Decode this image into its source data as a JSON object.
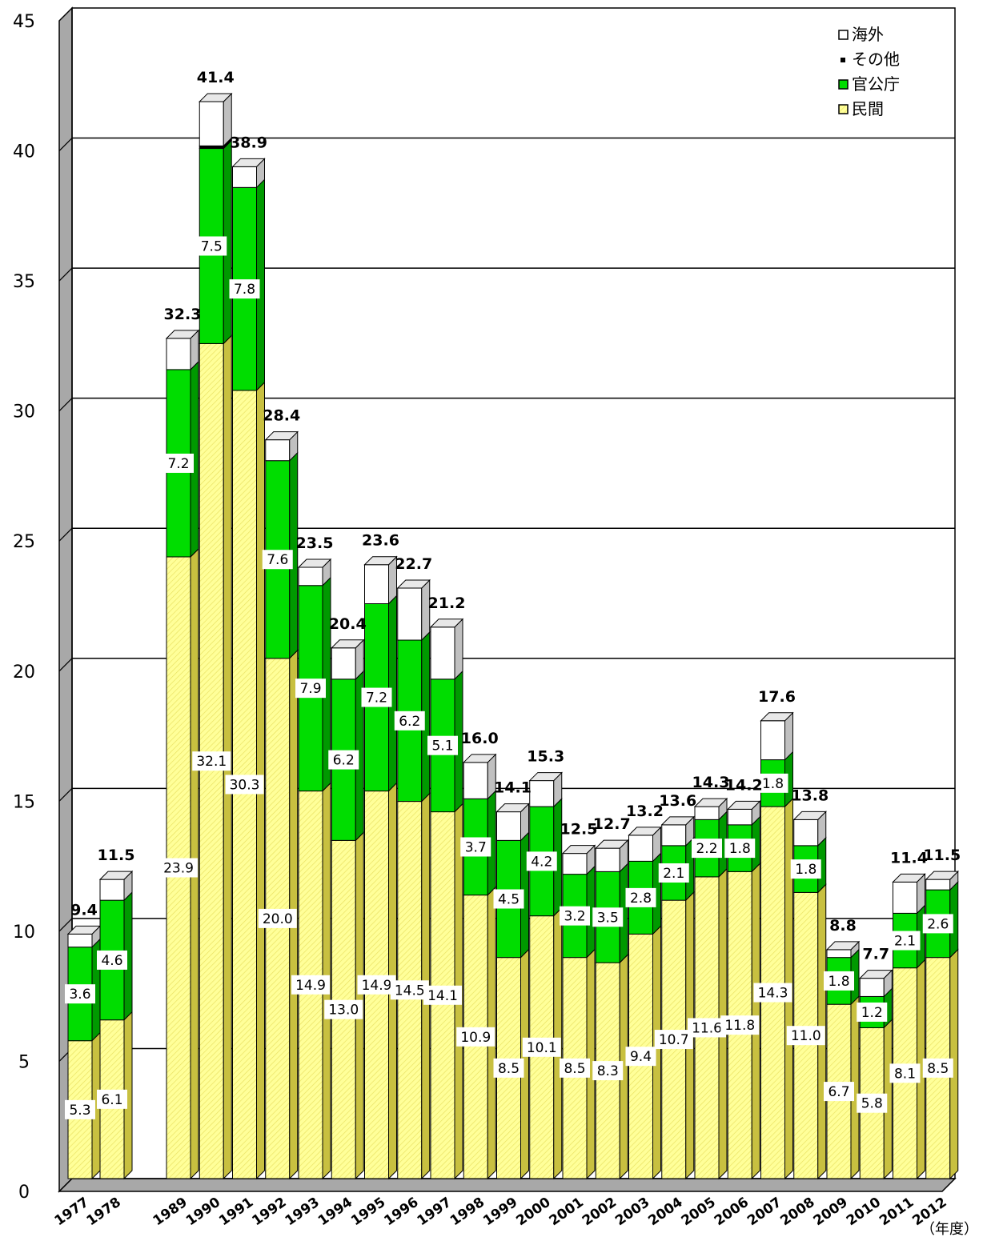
{
  "chart_data": {
    "type": "bar",
    "stacked": true,
    "categories": [
      "1977",
      "1978",
      "1989",
      "1990",
      "1991",
      "1992",
      "1993",
      "1994",
      "1995",
      "1996",
      "1997",
      "1998",
      "1999",
      "2000",
      "2001",
      "2002",
      "2003",
      "2004",
      "2005",
      "2006",
      "2007",
      "2008",
      "2009",
      "2010",
      "2011",
      "2012"
    ],
    "series": [
      {
        "name": "民間",
        "color": "#ffff99",
        "values": [
          5.3,
          6.1,
          23.9,
          32.1,
          30.3,
          20.0,
          14.9,
          13.0,
          14.9,
          14.5,
          14.1,
          10.9,
          8.5,
          10.1,
          8.5,
          8.3,
          9.4,
          10.7,
          11.6,
          11.8,
          14.3,
          11.0,
          6.7,
          5.8,
          8.1,
          8.5
        ],
        "labels": [
          "5.3",
          "6.1",
          "23.9",
          "32.1",
          "30.3",
          "20.0",
          "14.9",
          "13.0",
          "14.9",
          "14.5",
          "14.1",
          "10.9",
          "8.5",
          "10.1",
          "8.5",
          "8.3",
          "9.4",
          "10.7",
          "11.6",
          "11.8",
          "14.3",
          "11.0",
          "6.7",
          "5.8",
          "8.1",
          "8.5"
        ]
      },
      {
        "name": "官公庁",
        "color": "#00dd00",
        "values": [
          3.6,
          4.6,
          7.2,
          7.5,
          7.8,
          7.6,
          7.9,
          6.2,
          7.2,
          6.2,
          5.1,
          3.7,
          4.5,
          4.2,
          3.2,
          3.5,
          2.8,
          2.1,
          2.2,
          1.8,
          1.8,
          1.8,
          1.8,
          1.2,
          2.1,
          2.6
        ],
        "labels": [
          "3.6",
          "4.6",
          "7.2",
          "7.5",
          "7.8",
          "7.6",
          "7.9",
          "6.2",
          "7.2",
          "6.2",
          "5.1",
          "3.7",
          "4.5",
          "4.2",
          "3.2",
          "3.5",
          "2.8",
          "2.1",
          "2.2",
          "1.8",
          "1.8",
          "1.8",
          "1.8",
          "1.2",
          "2.1",
          "2.6"
        ]
      },
      {
        "name": "その他",
        "color": "#000000",
        "values": [
          0,
          0,
          0,
          0.1,
          0,
          0,
          0,
          0,
          0,
          0,
          0,
          0,
          0,
          0,
          0,
          0,
          0,
          0,
          0,
          0,
          0,
          0,
          0,
          0,
          0,
          0
        ]
      },
      {
        "name": "海外",
        "color": "#ffffff",
        "values": [
          0.5,
          0.8,
          1.2,
          1.7,
          0.8,
          0.8,
          0.7,
          1.2,
          1.5,
          2.0,
          2.0,
          1.4,
          1.1,
          1.0,
          0.8,
          0.9,
          1.0,
          0.8,
          0.5,
          0.6,
          1.5,
          1.0,
          0.3,
          0.7,
          1.2,
          0.4
        ]
      }
    ],
    "totals": [
      "9.4",
      "11.5",
      "32.3",
      "41.4",
      "38.9",
      "28.4",
      "23.5",
      "20.4",
      "23.6",
      "22.7",
      "21.2",
      "16.0",
      "14.1",
      "15.3",
      "12.5",
      "12.7",
      "13.2",
      "13.6",
      "14.3",
      "14.2",
      "17.6",
      "13.8",
      "8.8",
      "7.7",
      "11.4",
      "11.5"
    ],
    "ylim": [
      0,
      45
    ],
    "yticks": [
      "0",
      "5",
      "10",
      "15",
      "20",
      "25",
      "30",
      "35",
      "40",
      "45"
    ],
    "xlabel": "（年度）",
    "ylabel": "",
    "title": "",
    "grid": true,
    "legend_placement": "top-right",
    "legend_order": [
      "海外",
      "その他",
      "官公庁",
      "民間"
    ]
  }
}
